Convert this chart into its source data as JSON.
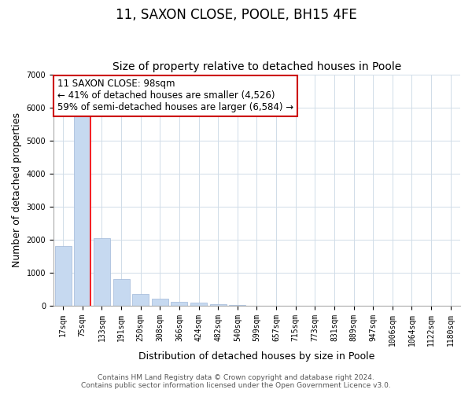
{
  "title": "11, SAXON CLOSE, POOLE, BH15 4FE",
  "subtitle": "Size of property relative to detached houses in Poole",
  "xlabel": "Distribution of detached houses by size in Poole",
  "ylabel": "Number of detached properties",
  "categories": [
    "17sqm",
    "75sqm",
    "133sqm",
    "191sqm",
    "250sqm",
    "308sqm",
    "366sqm",
    "424sqm",
    "482sqm",
    "540sqm",
    "599sqm",
    "657sqm",
    "715sqm",
    "773sqm",
    "831sqm",
    "889sqm",
    "947sqm",
    "1006sqm",
    "1064sqm",
    "1122sqm",
    "1180sqm"
  ],
  "values": [
    1800,
    5750,
    2050,
    820,
    360,
    230,
    130,
    95,
    60,
    30,
    15,
    5,
    2,
    0,
    0,
    0,
    0,
    0,
    0,
    0,
    0
  ],
  "bar_color": "#c6d9f0",
  "bar_edge_color": "#a0b8d8",
  "red_line_index": 1,
  "ylim": [
    0,
    7000
  ],
  "yticks": [
    0,
    1000,
    2000,
    3000,
    4000,
    5000,
    6000,
    7000
  ],
  "annotation_box_text": "11 SAXON CLOSE: 98sqm\n← 41% of detached houses are smaller (4,526)\n59% of semi-detached houses are larger (6,584) →",
  "annotation_box_edge_color": "#cc0000",
  "grid_color": "#d0dce8",
  "footer_line1": "Contains HM Land Registry data © Crown copyright and database right 2024.",
  "footer_line2": "Contains public sector information licensed under the Open Government Licence v3.0.",
  "title_fontsize": 12,
  "subtitle_fontsize": 10,
  "axis_label_fontsize": 9,
  "tick_fontsize": 7,
  "annotation_fontsize": 8.5,
  "footer_fontsize": 6.5
}
